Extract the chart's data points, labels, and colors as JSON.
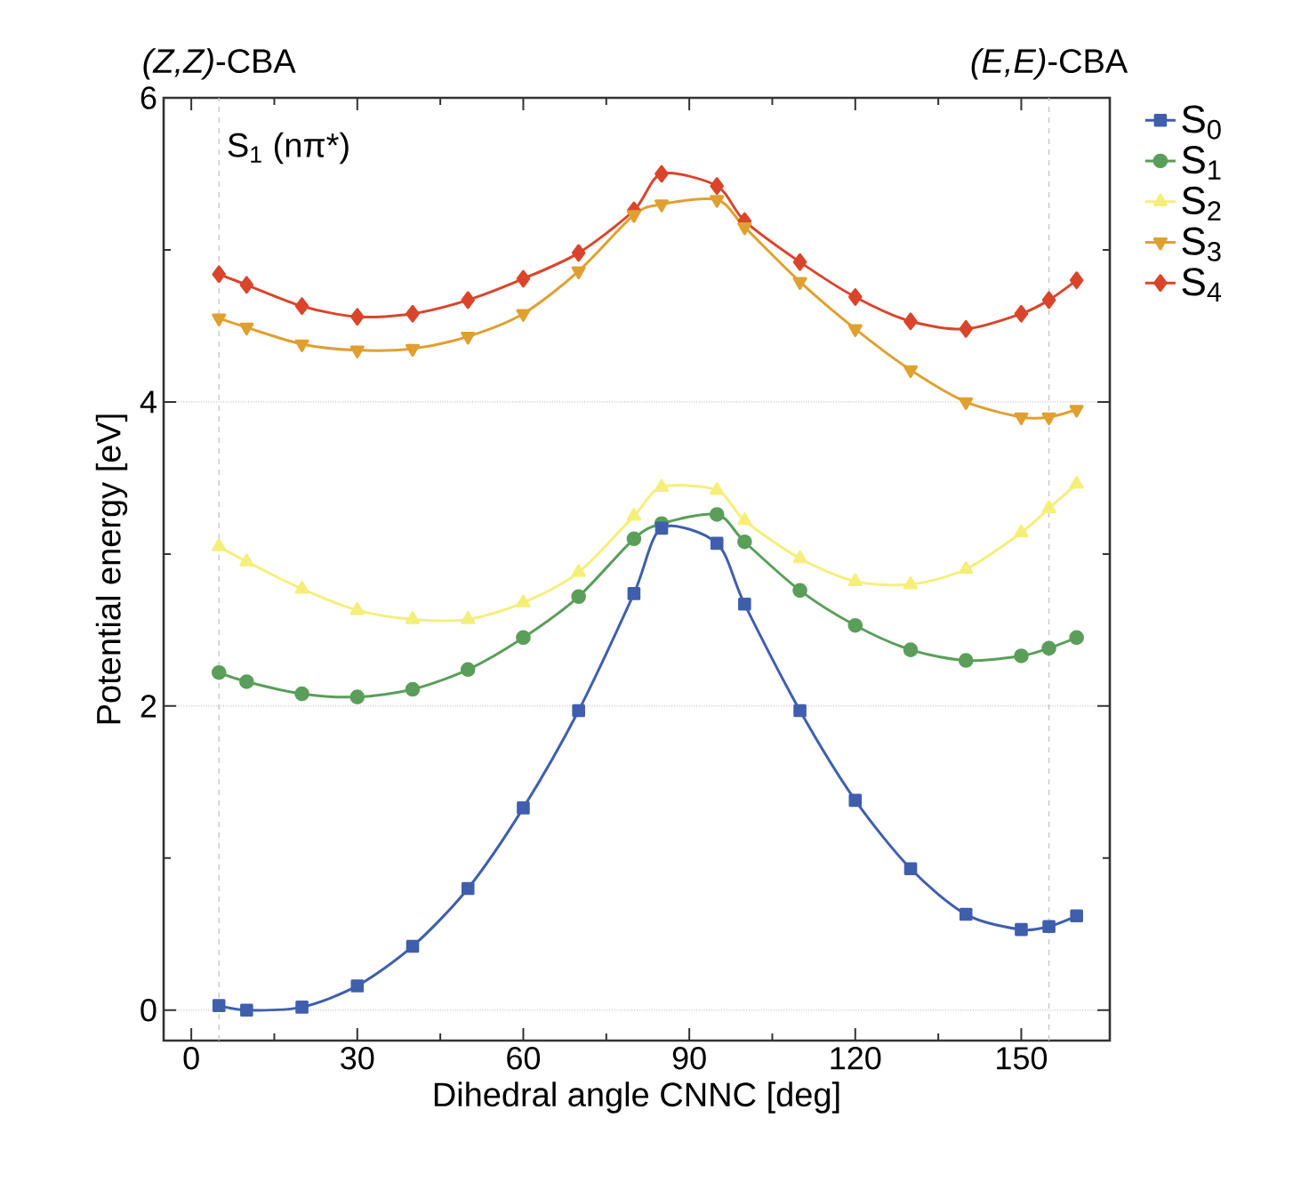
{
  "chart_data": {
    "type": "line",
    "xlabel": "Dihedral angle CNNC [deg]",
    "ylabel": "Potential energy [eV]",
    "x": [
      5,
      10,
      20,
      30,
      40,
      50,
      60,
      70,
      80,
      85,
      95,
      100,
      110,
      120,
      130,
      140,
      150,
      155,
      160
    ],
    "series": [
      {
        "name": "S$_{0}$",
        "color": "#3f5fad",
        "marker": "square",
        "values": [
          0.03,
          0.0,
          0.02,
          0.16,
          0.42,
          0.8,
          1.33,
          1.97,
          2.74,
          3.17,
          3.07,
          2.67,
          1.97,
          1.38,
          0.93,
          0.63,
          0.53,
          0.55,
          0.62
        ]
      },
      {
        "name": "S$_{1}$",
        "color": "#5a9e5a",
        "marker": "circle",
        "values": [
          2.22,
          2.16,
          2.08,
          2.06,
          2.11,
          2.24,
          2.45,
          2.72,
          3.1,
          3.2,
          3.26,
          3.08,
          2.76,
          2.53,
          2.37,
          2.3,
          2.33,
          2.38,
          2.45
        ]
      },
      {
        "name": "S$_{2}$",
        "color": "#f5ef7a",
        "marker": "triangle",
        "values": [
          3.05,
          2.95,
          2.77,
          2.63,
          2.57,
          2.57,
          2.68,
          2.88,
          3.25,
          3.44,
          3.42,
          3.22,
          2.97,
          2.82,
          2.8,
          2.9,
          3.14,
          3.3,
          3.46
        ]
      },
      {
        "name": "S$_{3}$",
        "color": "#e0a030",
        "marker": "triangle-down",
        "values": [
          4.55,
          4.49,
          4.38,
          4.34,
          4.35,
          4.43,
          4.58,
          4.86,
          5.23,
          5.3,
          5.33,
          5.15,
          4.79,
          4.48,
          4.21,
          4.0,
          3.9,
          3.9,
          3.95
        ]
      },
      {
        "name": "S$_{4}$",
        "color": "#d9452b",
        "marker": "diamond",
        "values": [
          4.84,
          4.77,
          4.63,
          4.56,
          4.58,
          4.67,
          4.81,
          4.98,
          5.26,
          5.5,
          5.42,
          5.19,
          4.92,
          4.69,
          4.53,
          4.48,
          4.58,
          4.67,
          4.8
        ]
      }
    ],
    "xlim": [
      -5,
      166
    ],
    "ylim": [
      -0.2,
      6
    ],
    "xticks": [
      0,
      30,
      60,
      90,
      120,
      150
    ],
    "yticks": [
      0,
      2,
      4,
      6
    ],
    "grid": "y",
    "legend": "right",
    "line_style": "solid",
    "ref_lines": [
      {
        "axis": "x",
        "value": 5,
        "label": "*(Z,Z)*-CBA",
        "color": "#c8c8c8",
        "line_style": "dashed"
      },
      {
        "axis": "x",
        "value": 155,
        "label": "*(E,E)*-CBA",
        "color": "#c8c8c8",
        "line_style": "dashed"
      }
    ],
    "annotations": [
      "S$_{1}$ (nπ*)"
    ]
  }
}
